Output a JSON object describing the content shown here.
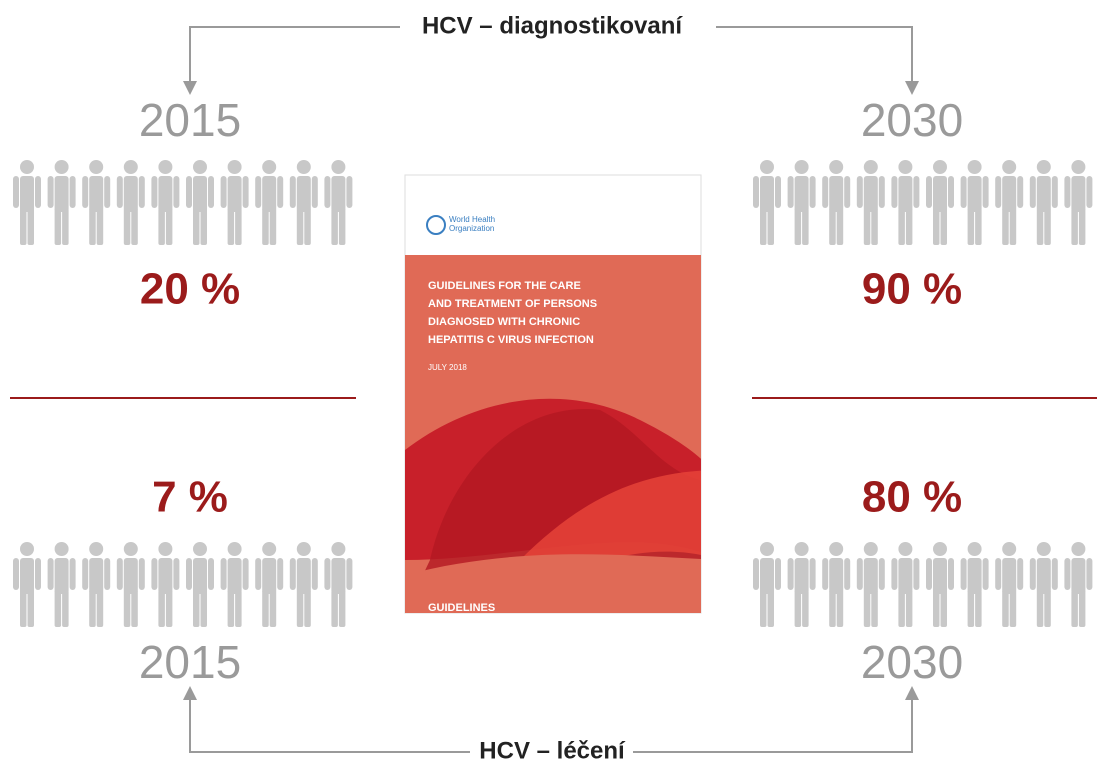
{
  "diagnosed": {
    "label": "HCV – diagnostikovaní",
    "panels": [
      {
        "year": "2015",
        "value": 20,
        "label": "20 %"
      },
      {
        "year": "2030",
        "value": 90,
        "label": "90 %"
      }
    ]
  },
  "treated": {
    "label": "HCV – léčení",
    "panels": [
      {
        "year": "2015",
        "value": 7,
        "label": "7 %"
      },
      {
        "year": "2030",
        "value": 80,
        "label": "80 %"
      }
    ]
  },
  "cover": {
    "org": [
      "World Health",
      "Organization"
    ],
    "title": [
      "GUIDELINES FOR THE CARE",
      "AND TREATMENT OF PERSONS",
      "DIAGNOSED WITH CHRONIC",
      "HEPATITIS C VIRUS INFECTION"
    ],
    "date": "JULY 2018",
    "footer": "GUIDELINES"
  }
}
